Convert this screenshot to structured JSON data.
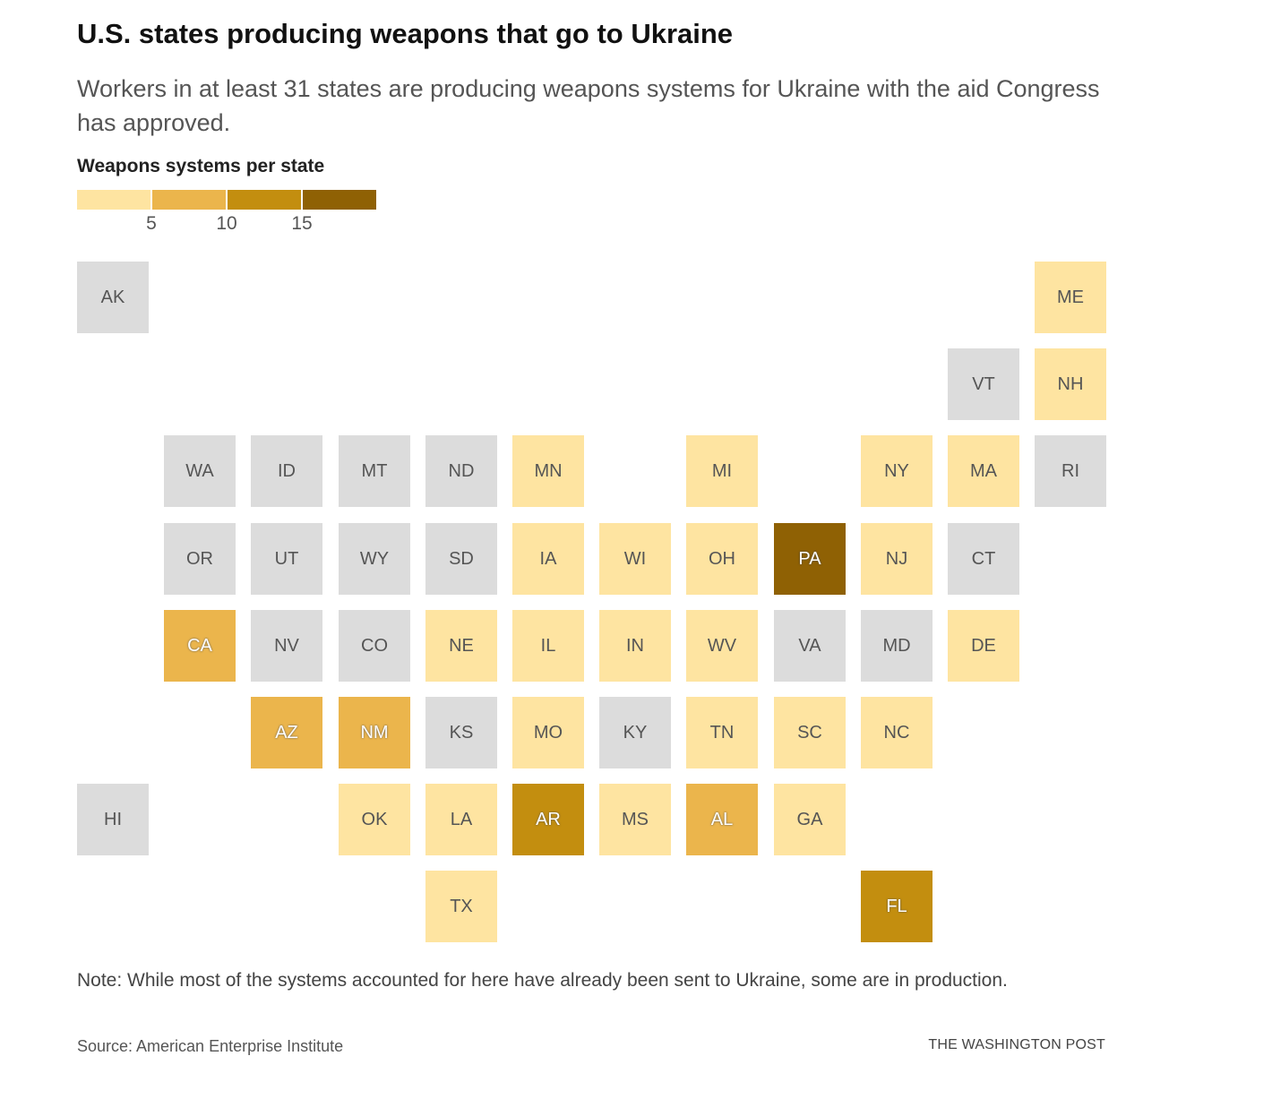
{
  "header": {
    "title": "U.S. states producing weapons that go to Ukraine",
    "subtitle": "Workers in at least 31 states are producing weapons systems for Ukraine with the aid Congress has approved."
  },
  "legend": {
    "title": "Weapons systems per state",
    "bins": [
      {
        "color": "#fee4a1"
      },
      {
        "color": "#ebb54c"
      },
      {
        "color": "#c38e0f"
      },
      {
        "color": "#8f6104"
      }
    ],
    "ticks": [
      "5",
      "10",
      "15"
    ]
  },
  "colors": {
    "none": "#dcdcdc"
  },
  "chart_data": {
    "type": "heatmap",
    "layout": "tile-grid-map",
    "legend_bins": [
      "<5",
      "5-10",
      "10-15",
      "15+"
    ],
    "states": [
      {
        "abbr": "AK",
        "col": 0,
        "row": 0,
        "bin": null
      },
      {
        "abbr": "ME",
        "col": 11,
        "row": 0,
        "bin": 0
      },
      {
        "abbr": "VT",
        "col": 10,
        "row": 1,
        "bin": null
      },
      {
        "abbr": "NH",
        "col": 11,
        "row": 1,
        "bin": 0
      },
      {
        "abbr": "WA",
        "col": 1,
        "row": 2,
        "bin": null
      },
      {
        "abbr": "ID",
        "col": 2,
        "row": 2,
        "bin": null
      },
      {
        "abbr": "MT",
        "col": 3,
        "row": 2,
        "bin": null
      },
      {
        "abbr": "ND",
        "col": 4,
        "row": 2,
        "bin": null
      },
      {
        "abbr": "MN",
        "col": 5,
        "row": 2,
        "bin": 0
      },
      {
        "abbr": "MI",
        "col": 7,
        "row": 2,
        "bin": 0
      },
      {
        "abbr": "NY",
        "col": 9,
        "row": 2,
        "bin": 0
      },
      {
        "abbr": "MA",
        "col": 10,
        "row": 2,
        "bin": 0
      },
      {
        "abbr": "RI",
        "col": 11,
        "row": 2,
        "bin": null
      },
      {
        "abbr": "OR",
        "col": 1,
        "row": 3,
        "bin": null
      },
      {
        "abbr": "UT",
        "col": 2,
        "row": 3,
        "bin": null
      },
      {
        "abbr": "WY",
        "col": 3,
        "row": 3,
        "bin": null
      },
      {
        "abbr": "SD",
        "col": 4,
        "row": 3,
        "bin": null
      },
      {
        "abbr": "IA",
        "col": 5,
        "row": 3,
        "bin": 0
      },
      {
        "abbr": "WI",
        "col": 6,
        "row": 3,
        "bin": 0
      },
      {
        "abbr": "OH",
        "col": 7,
        "row": 3,
        "bin": 0
      },
      {
        "abbr": "PA",
        "col": 8,
        "row": 3,
        "bin": 3
      },
      {
        "abbr": "NJ",
        "col": 9,
        "row": 3,
        "bin": 0
      },
      {
        "abbr": "CT",
        "col": 10,
        "row": 3,
        "bin": null
      },
      {
        "abbr": "CA",
        "col": 1,
        "row": 4,
        "bin": 1
      },
      {
        "abbr": "NV",
        "col": 2,
        "row": 4,
        "bin": null
      },
      {
        "abbr": "CO",
        "col": 3,
        "row": 4,
        "bin": null
      },
      {
        "abbr": "NE",
        "col": 4,
        "row": 4,
        "bin": 0
      },
      {
        "abbr": "IL",
        "col": 5,
        "row": 4,
        "bin": 0
      },
      {
        "abbr": "IN",
        "col": 6,
        "row": 4,
        "bin": 0
      },
      {
        "abbr": "WV",
        "col": 7,
        "row": 4,
        "bin": 0
      },
      {
        "abbr": "VA",
        "col": 8,
        "row": 4,
        "bin": null
      },
      {
        "abbr": "MD",
        "col": 9,
        "row": 4,
        "bin": null
      },
      {
        "abbr": "DE",
        "col": 10,
        "row": 4,
        "bin": 0
      },
      {
        "abbr": "AZ",
        "col": 2,
        "row": 5,
        "bin": 1
      },
      {
        "abbr": "NM",
        "col": 3,
        "row": 5,
        "bin": 1
      },
      {
        "abbr": "KS",
        "col": 4,
        "row": 5,
        "bin": null
      },
      {
        "abbr": "MO",
        "col": 5,
        "row": 5,
        "bin": 0
      },
      {
        "abbr": "KY",
        "col": 6,
        "row": 5,
        "bin": null
      },
      {
        "abbr": "TN",
        "col": 7,
        "row": 5,
        "bin": 0
      },
      {
        "abbr": "SC",
        "col": 8,
        "row": 5,
        "bin": 0
      },
      {
        "abbr": "NC",
        "col": 9,
        "row": 5,
        "bin": 0
      },
      {
        "abbr": "HI",
        "col": 0,
        "row": 6,
        "bin": null
      },
      {
        "abbr": "OK",
        "col": 3,
        "row": 6,
        "bin": 0
      },
      {
        "abbr": "LA",
        "col": 4,
        "row": 6,
        "bin": 0
      },
      {
        "abbr": "AR",
        "col": 5,
        "row": 6,
        "bin": 2
      },
      {
        "abbr": "MS",
        "col": 6,
        "row": 6,
        "bin": 0
      },
      {
        "abbr": "AL",
        "col": 7,
        "row": 6,
        "bin": 1
      },
      {
        "abbr": "GA",
        "col": 8,
        "row": 6,
        "bin": 0
      },
      {
        "abbr": "TX",
        "col": 4,
        "row": 7,
        "bin": 0
      },
      {
        "abbr": "FL",
        "col": 9,
        "row": 7,
        "bin": 2
      }
    ]
  },
  "footer": {
    "note": "Note: While most of the systems accounted for here have already been sent to Ukraine, some are in production.",
    "source": "Source: American Enterprise Institute",
    "credit": "THE WASHINGTON POST"
  }
}
